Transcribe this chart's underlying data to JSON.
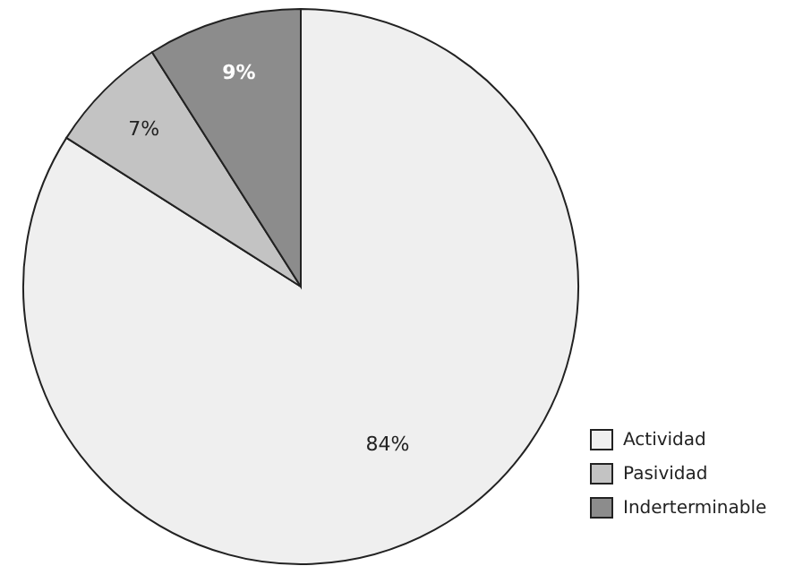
{
  "chart_data": {
    "type": "pie",
    "categories": [
      "Actividad",
      "Pasividad",
      "Inderterminable"
    ],
    "values": [
      84,
      7,
      9
    ],
    "colors": [
      "#efefef",
      "#c3c3c3",
      "#8c8c8c"
    ],
    "value_labels": [
      "84%",
      "7%",
      "9%"
    ],
    "legend": "bottom right"
  }
}
